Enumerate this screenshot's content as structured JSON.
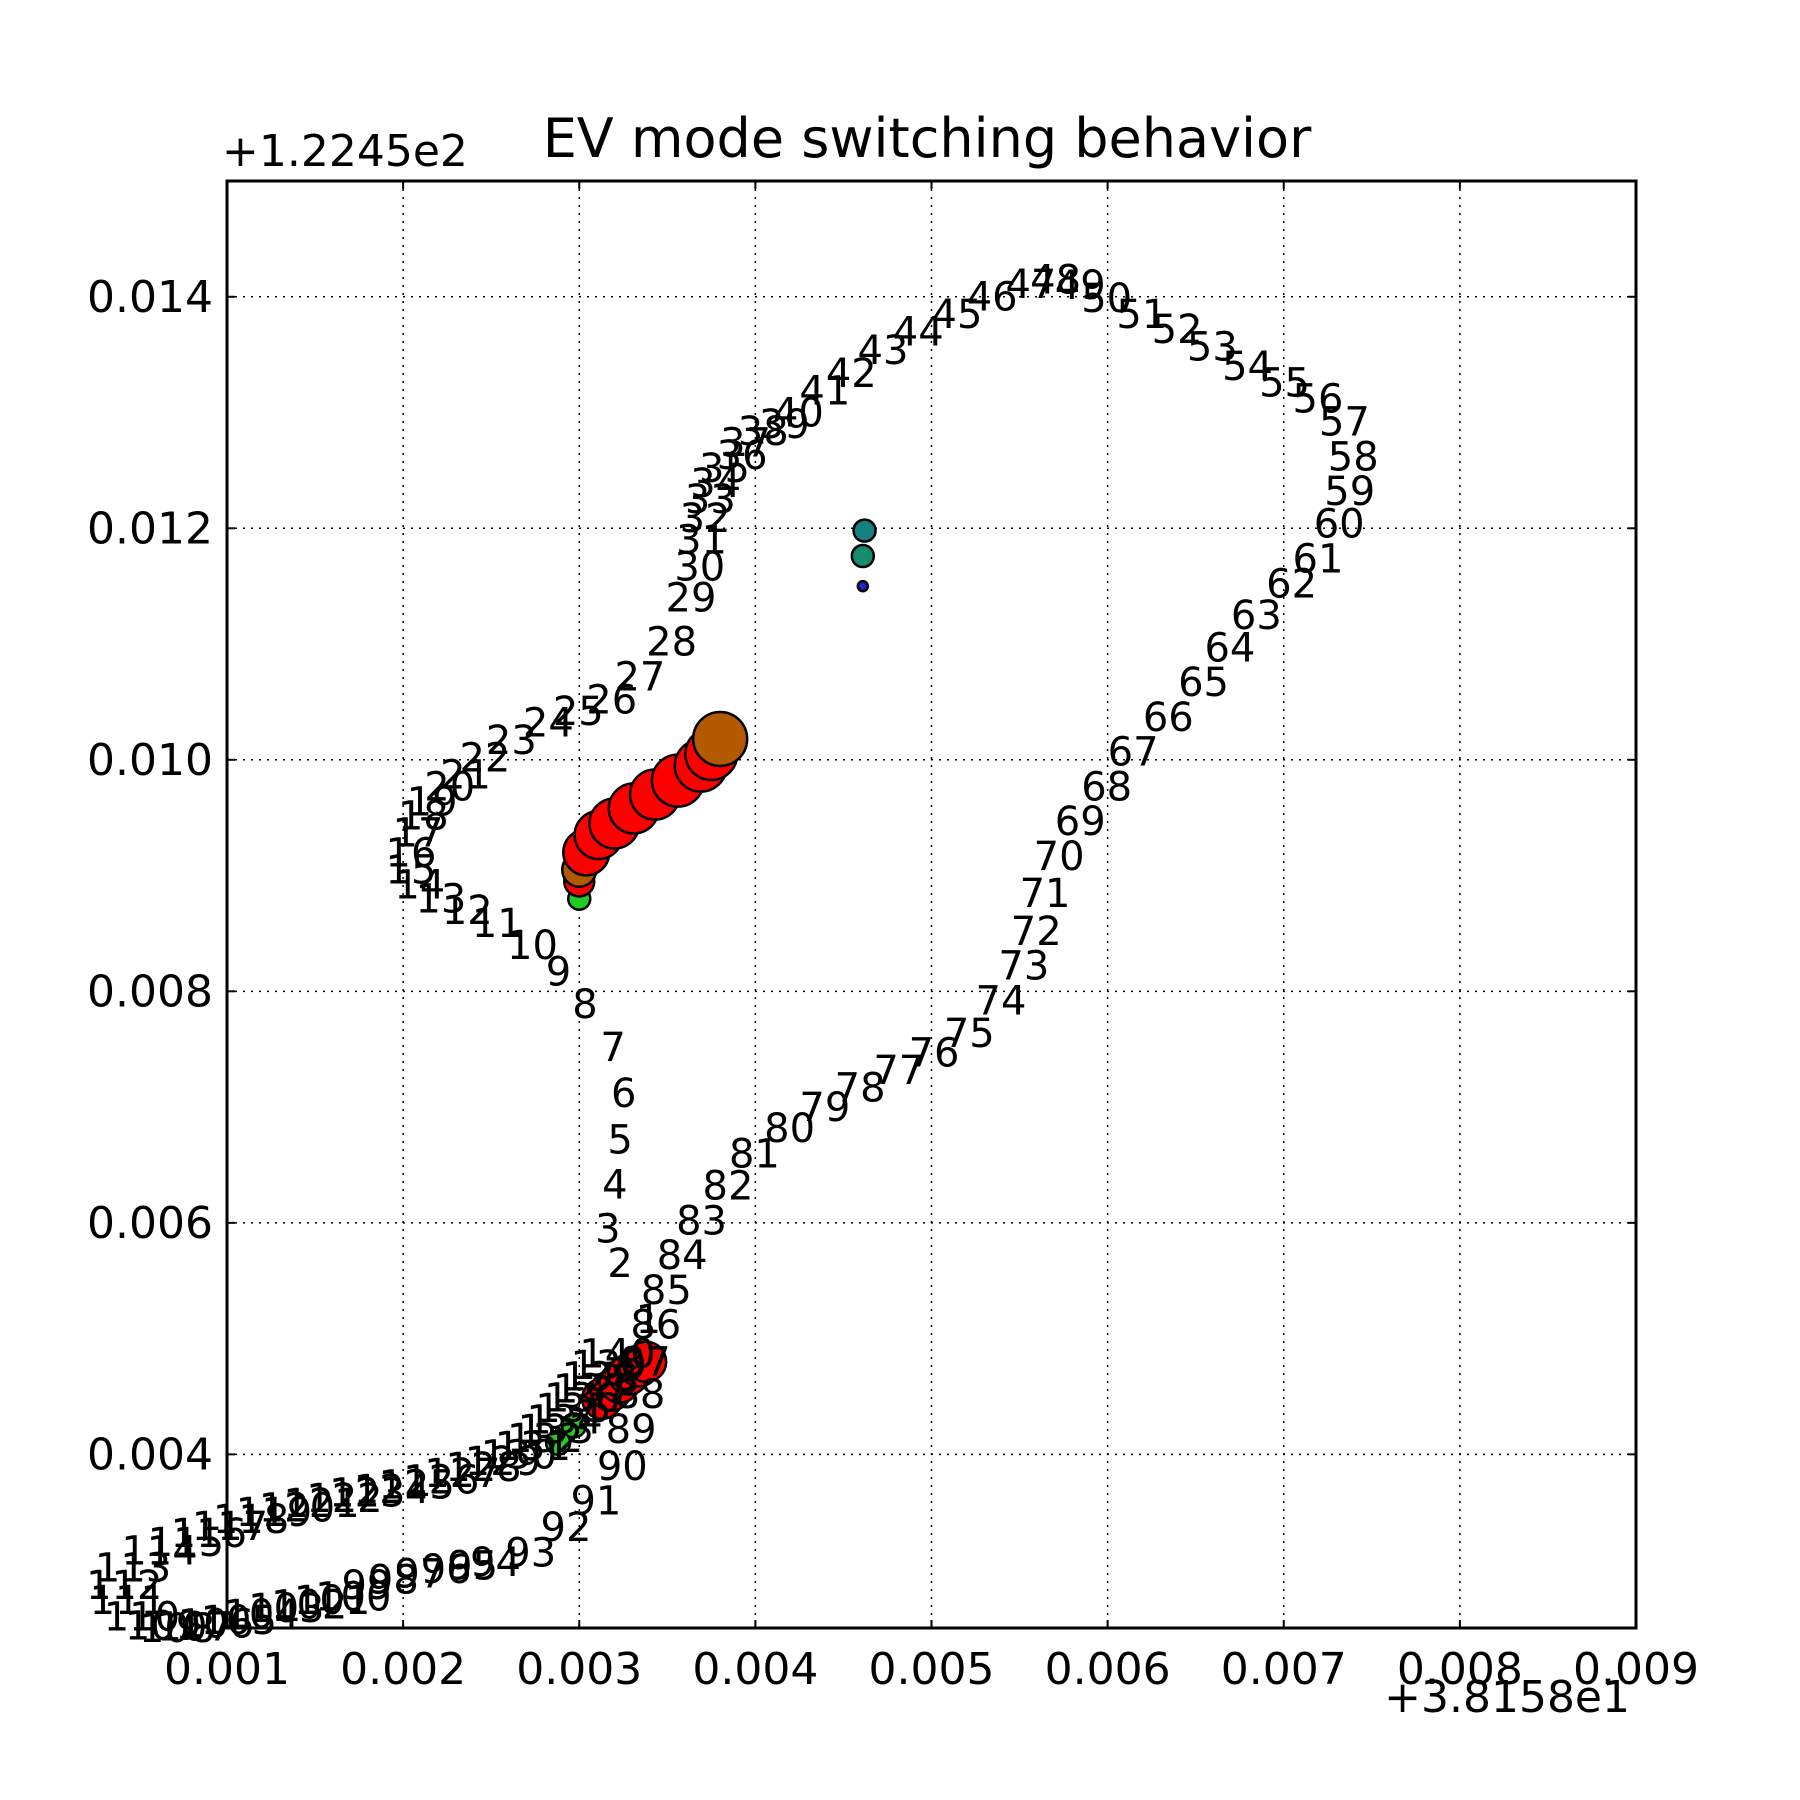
{
  "chart_data": {
    "type": "scatter",
    "title": "EV mode switching behavior",
    "xlabel": "",
    "ylabel": "",
    "x_offset_label": "+3.8158e1",
    "y_offset_label": "+1.2245e2",
    "xlim": [
      0.001,
      0.009
    ],
    "ylim": [
      0.0025,
      0.015
    ],
    "x_ticks": [
      "0.001",
      "0.002",
      "0.003",
      "0.004",
      "0.005",
      "0.006",
      "0.007",
      "0.008",
      "0.009"
    ],
    "y_ticks": [
      "0.004",
      "0.006",
      "0.008",
      "0.010",
      "0.012",
      "0.014"
    ],
    "grid": true,
    "path_labels": [
      {
        "t": "1",
        "x": 0.00332,
        "y": 0.00505
      },
      {
        "t": "2",
        "x": 0.00316,
        "y": 0.00553
      },
      {
        "t": "3",
        "x": 0.00309,
        "y": 0.00583
      },
      {
        "t": "4",
        "x": 0.00313,
        "y": 0.00621
      },
      {
        "t": "5",
        "x": 0.00316,
        "y": 0.0066
      },
      {
        "t": "6",
        "x": 0.00318,
        "y": 0.007
      },
      {
        "t": "7",
        "x": 0.00312,
        "y": 0.0074
      },
      {
        "t": "8",
        "x": 0.00296,
        "y": 0.00777
      },
      {
        "t": "9",
        "x": 0.00281,
        "y": 0.00805
      },
      {
        "t": "10",
        "x": 0.00259,
        "y": 0.00828
      },
      {
        "t": "11",
        "x": 0.00239,
        "y": 0.00847
      },
      {
        "t": "12",
        "x": 0.00222,
        "y": 0.00858
      },
      {
        "t": "13",
        "x": 0.00207,
        "y": 0.00868
      },
      {
        "t": "14",
        "x": 0.00195,
        "y": 0.0088
      },
      {
        "t": "15",
        "x": 0.0019,
        "y": 0.00893
      },
      {
        "t": "16",
        "x": 0.0019,
        "y": 0.00908
      },
      {
        "t": "17",
        "x": 0.00194,
        "y": 0.00925
      },
      {
        "t": "18",
        "x": 0.00197,
        "y": 0.0094
      },
      {
        "t": "19",
        "x": 0.00202,
        "y": 0.00952
      },
      {
        "t": "20",
        "x": 0.00212,
        "y": 0.00965
      },
      {
        "t": "21",
        "x": 0.00221,
        "y": 0.00975
      },
      {
        "t": "22",
        "x": 0.00232,
        "y": 0.0099
      },
      {
        "t": "23",
        "x": 0.00247,
        "y": 0.01005
      },
      {
        "t": "24",
        "x": 0.00268,
        "y": 0.0102
      },
      {
        "t": "25",
        "x": 0.00285,
        "y": 0.0103
      },
      {
        "t": "26",
        "x": 0.00304,
        "y": 0.0104
      },
      {
        "t": "27",
        "x": 0.0032,
        "y": 0.0106
      },
      {
        "t": "28",
        "x": 0.00338,
        "y": 0.0109
      },
      {
        "t": "29",
        "x": 0.00349,
        "y": 0.01128
      },
      {
        "t": "30",
        "x": 0.00354,
        "y": 0.01155
      },
      {
        "t": "31",
        "x": 0.00355,
        "y": 0.01178
      },
      {
        "t": "32",
        "x": 0.00357,
        "y": 0.01197
      },
      {
        "t": "33",
        "x": 0.0036,
        "y": 0.01213
      },
      {
        "t": "34",
        "x": 0.00363,
        "y": 0.01227
      },
      {
        "t": "35",
        "x": 0.00368,
        "y": 0.0124
      },
      {
        "t": "36",
        "x": 0.00378,
        "y": 0.01251
      },
      {
        "t": "37",
        "x": 0.0038,
        "y": 0.01262
      },
      {
        "t": "38",
        "x": 0.0039,
        "y": 0.01272
      },
      {
        "t": "39",
        "x": 0.00402,
        "y": 0.01278
      },
      {
        "t": "40",
        "x": 0.0041,
        "y": 0.01288
      },
      {
        "t": "41",
        "x": 0.00425,
        "y": 0.01307
      },
      {
        "t": "42",
        "x": 0.0044,
        "y": 0.01322
      },
      {
        "t": "43",
        "x": 0.00458,
        "y": 0.01342
      },
      {
        "t": "44",
        "x": 0.00478,
        "y": 0.01358
      },
      {
        "t": "45",
        "x": 0.005,
        "y": 0.01373
      },
      {
        "t": "46",
        "x": 0.0052,
        "y": 0.01388
      },
      {
        "t": "47",
        "x": 0.00542,
        "y": 0.01399
      },
      {
        "t": "48",
        "x": 0.00556,
        "y": 0.01403
      },
      {
        "t": "49",
        "x": 0.0057,
        "y": 0.01398
      },
      {
        "t": "50",
        "x": 0.00585,
        "y": 0.01387
      },
      {
        "t": "51",
        "x": 0.00605,
        "y": 0.01373
      },
      {
        "t": "52",
        "x": 0.00625,
        "y": 0.0136
      },
      {
        "t": "53",
        "x": 0.00645,
        "y": 0.01345
      },
      {
        "t": "54",
        "x": 0.00665,
        "y": 0.01328
      },
      {
        "t": "55",
        "x": 0.00686,
        "y": 0.01314
      },
      {
        "t": "56",
        "x": 0.00705,
        "y": 0.013
      },
      {
        "t": "57",
        "x": 0.0072,
        "y": 0.0128
      },
      {
        "t": "58",
        "x": 0.00725,
        "y": 0.0125
      },
      {
        "t": "59",
        "x": 0.00723,
        "y": 0.0122
      },
      {
        "t": "60",
        "x": 0.00717,
        "y": 0.01192
      },
      {
        "t": "61",
        "x": 0.00705,
        "y": 0.01162
      },
      {
        "t": "62",
        "x": 0.0069,
        "y": 0.0114
      },
      {
        "t": "63",
        "x": 0.0067,
        "y": 0.01113
      },
      {
        "t": "64",
        "x": 0.00655,
        "y": 0.01085
      },
      {
        "t": "65",
        "x": 0.0064,
        "y": 0.01055
      },
      {
        "t": "66",
        "x": 0.0062,
        "y": 0.01025
      },
      {
        "t": "67",
        "x": 0.006,
        "y": 0.00995
      },
      {
        "t": "68",
        "x": 0.00585,
        "y": 0.00965
      },
      {
        "t": "69",
        "x": 0.0057,
        "y": 0.00935
      },
      {
        "t": "70",
        "x": 0.00558,
        "y": 0.00905
      },
      {
        "t": "71",
        "x": 0.0055,
        "y": 0.00873
      },
      {
        "t": "72",
        "x": 0.00545,
        "y": 0.0084
      },
      {
        "t": "73",
        "x": 0.00538,
        "y": 0.0081
      },
      {
        "t": "74",
        "x": 0.00525,
        "y": 0.0078
      },
      {
        "t": "75",
        "x": 0.00507,
        "y": 0.00752
      },
      {
        "t": "76",
        "x": 0.00487,
        "y": 0.00735
      },
      {
        "t": "77",
        "x": 0.00467,
        "y": 0.0072
      },
      {
        "t": "78",
        "x": 0.00445,
        "y": 0.00705
      },
      {
        "t": "79",
        "x": 0.00425,
        "y": 0.00688
      },
      {
        "t": "80",
        "x": 0.00405,
        "y": 0.0067
      },
      {
        "t": "81",
        "x": 0.00385,
        "y": 0.00648
      },
      {
        "t": "82",
        "x": 0.0037,
        "y": 0.0062
      },
      {
        "t": "83",
        "x": 0.00355,
        "y": 0.0059
      },
      {
        "t": "84",
        "x": 0.00344,
        "y": 0.0056
      },
      {
        "t": "85",
        "x": 0.00335,
        "y": 0.0053
      },
      {
        "t": "86",
        "x": 0.00329,
        "y": 0.005
      },
      {
        "t": "87",
        "x": 0.00323,
        "y": 0.00468
      },
      {
        "t": "88",
        "x": 0.0032,
        "y": 0.0044
      },
      {
        "t": "89",
        "x": 0.00315,
        "y": 0.0041
      },
      {
        "t": "90",
        "x": 0.0031,
        "y": 0.00378
      },
      {
        "t": "91",
        "x": 0.00295,
        "y": 0.00348
      },
      {
        "t": "92",
        "x": 0.00278,
        "y": 0.00325
      },
      {
        "t": "93",
        "x": 0.00258,
        "y": 0.00303
      },
      {
        "t": "94",
        "x": 0.00238,
        "y": 0.00295
      },
      {
        "t": "95",
        "x": 0.00225,
        "y": 0.00292
      },
      {
        "t": "96",
        "x": 0.0021,
        "y": 0.00289
      },
      {
        "t": "97",
        "x": 0.00195,
        "y": 0.00285
      },
      {
        "t": "98",
        "x": 0.0018,
        "y": 0.0028
      },
      {
        "t": "99",
        "x": 0.00165,
        "y": 0.00275
      },
      {
        "t": "100",
        "x": 0.0015,
        "y": 0.00265
      },
      {
        "t": "101",
        "x": 0.00138,
        "y": 0.00262
      },
      {
        "t": "102",
        "x": 0.00125,
        "y": 0.00258
      },
      {
        "t": "103",
        "x": 0.00112,
        "y": 0.00255
      },
      {
        "t": "104",
        "x": 0.00098,
        "y": 0.0025
      },
      {
        "t": "105",
        "x": 0.00085,
        "y": 0.00245
      },
      {
        "t": "106",
        "x": 0.00072,
        "y": 0.00242
      },
      {
        "t": "107",
        "x": 0.0006,
        "y": 0.00239
      },
      {
        "t": "108",
        "x": 0.0005,
        "y": 0.00238
      },
      {
        "t": "109",
        "x": 0.00042,
        "y": 0.0024
      },
      {
        "t": "110",
        "x": 0.0003,
        "y": 0.00248
      },
      {
        "t": "111",
        "x": 0.00022,
        "y": 0.00262
      },
      {
        "t": "112",
        "x": 0.0002,
        "y": 0.00275
      },
      {
        "t": "113",
        "x": 0.00025,
        "y": 0.0029
      },
      {
        "t": "114",
        "x": 0.0004,
        "y": 0.00305
      },
      {
        "t": "115",
        "x": 0.00055,
        "y": 0.00312
      },
      {
        "t": "116",
        "x": 0.00068,
        "y": 0.0032
      },
      {
        "t": "117",
        "x": 0.0008,
        "y": 0.00326
      },
      {
        "t": "118",
        "x": 0.00092,
        "y": 0.00332
      },
      {
        "t": "119",
        "x": 0.00105,
        "y": 0.00338
      },
      {
        "t": "120",
        "x": 0.00118,
        "y": 0.00342
      },
      {
        "t": "121",
        "x": 0.00132,
        "y": 0.00346
      },
      {
        "t": "122",
        "x": 0.00145,
        "y": 0.0035
      },
      {
        "t": "123",
        "x": 0.00158,
        "y": 0.00355
      },
      {
        "t": "124",
        "x": 0.00172,
        "y": 0.00358
      },
      {
        "t": "125",
        "x": 0.00186,
        "y": 0.00362
      },
      {
        "t": "126",
        "x": 0.002,
        "y": 0.00366
      },
      {
        "t": "127",
        "x": 0.00212,
        "y": 0.00372
      },
      {
        "t": "128",
        "x": 0.00224,
        "y": 0.00377
      },
      {
        "t": "129",
        "x": 0.00235,
        "y": 0.00382
      },
      {
        "t": "130",
        "x": 0.00244,
        "y": 0.00388
      },
      {
        "t": "131",
        "x": 0.00252,
        "y": 0.00395
      },
      {
        "t": "132",
        "x": 0.00259,
        "y": 0.00402
      },
      {
        "t": "133",
        "x": 0.00265,
        "y": 0.0041
      },
      {
        "t": "134",
        "x": 0.0027,
        "y": 0.00418
      },
      {
        "t": "135",
        "x": 0.00275,
        "y": 0.00428
      },
      {
        "t": "136",
        "x": 0.0028,
        "y": 0.00437
      },
      {
        "t": "137",
        "x": 0.00285,
        "y": 0.00445
      },
      {
        "t": "138",
        "x": 0.0029,
        "y": 0.00455
      },
      {
        "t": "139",
        "x": 0.00295,
        "y": 0.00465
      },
      {
        "t": "140",
        "x": 0.003,
        "y": 0.00475
      }
    ],
    "markers": [
      {
        "x": 0.003,
        "y": 0.0088,
        "color": "#22cc22",
        "size": 22
      },
      {
        "x": 0.003,
        "y": 0.00895,
        "color": "#ff0000",
        "size": 30
      },
      {
        "x": 0.003,
        "y": 0.00905,
        "color": "#b35900",
        "size": 34
      },
      {
        "x": 0.00304,
        "y": 0.0092,
        "color": "#ff0000",
        "size": 46
      },
      {
        "x": 0.00311,
        "y": 0.00935,
        "color": "#ff0000",
        "size": 48
      },
      {
        "x": 0.0032,
        "y": 0.00945,
        "color": "#ff0000",
        "size": 50
      },
      {
        "x": 0.00331,
        "y": 0.00958,
        "color": "#ff0000",
        "size": 50
      },
      {
        "x": 0.00343,
        "y": 0.0097,
        "color": "#ff0000",
        "size": 50
      },
      {
        "x": 0.00356,
        "y": 0.00982,
        "color": "#ff0000",
        "size": 52
      },
      {
        "x": 0.00369,
        "y": 0.00995,
        "color": "#ff0000",
        "size": 52
      },
      {
        "x": 0.00375,
        "y": 0.01005,
        "color": "#ff0000",
        "size": 52
      },
      {
        "x": 0.0038,
        "y": 0.01018,
        "color": "#b35900",
        "size": 54
      },
      {
        "x": 0.00462,
        "y": 0.01198,
        "color": "#148080",
        "size": 22
      },
      {
        "x": 0.00461,
        "y": 0.01176,
        "color": "#148c6e",
        "size": 22
      },
      {
        "x": 0.00461,
        "y": 0.0115,
        "color": "#2222cc",
        "size": 10
      },
      {
        "x": 0.00288,
        "y": 0.0041,
        "color": "#22cc22",
        "size": 24
      },
      {
        "x": 0.00297,
        "y": 0.00425,
        "color": "#22cc22",
        "size": 24
      },
      {
        "x": 0.00313,
        "y": 0.00448,
        "color": "#ff0000",
        "size": 40
      },
      {
        "x": 0.00318,
        "y": 0.00455,
        "color": "#ff0000",
        "size": 40
      },
      {
        "x": 0.00323,
        "y": 0.00462,
        "color": "#ff0000",
        "size": 40
      },
      {
        "x": 0.00328,
        "y": 0.00469,
        "color": "#ff0000",
        "size": 40
      },
      {
        "x": 0.00334,
        "y": 0.00476,
        "color": "#ff0000",
        "size": 40
      },
      {
        "x": 0.00338,
        "y": 0.0048,
        "color": "#ff0000",
        "size": 40
      }
    ]
  }
}
